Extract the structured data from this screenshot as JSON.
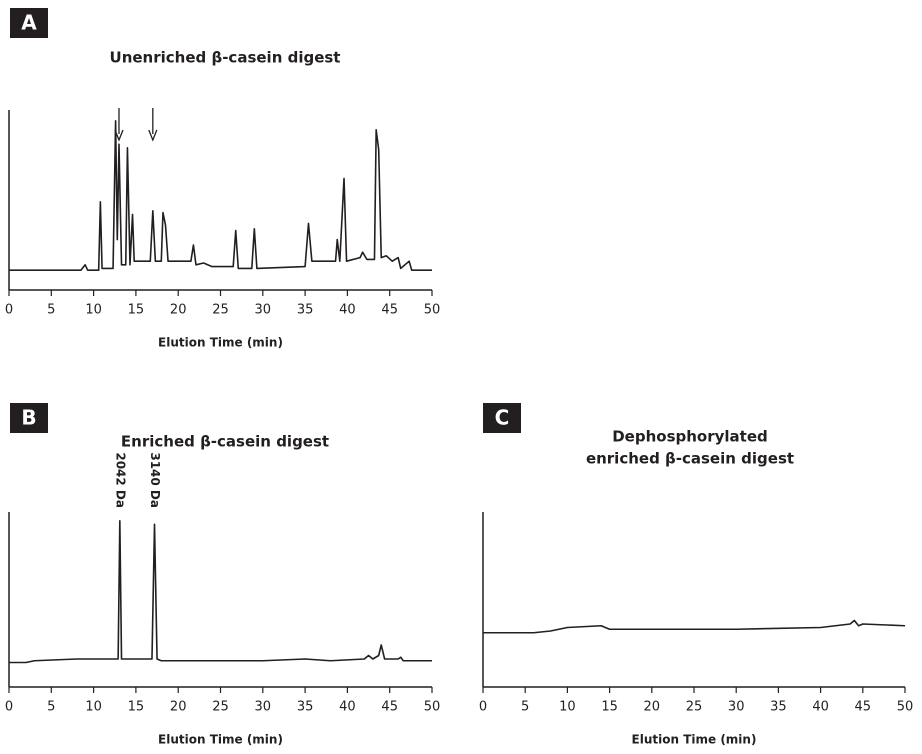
{
  "chart_data": [
    {
      "type": "line",
      "panel": "A",
      "title": [
        "Unenriched β-casein digest"
      ],
      "xlabel": "Elution Time (min)",
      "xlim": [
        0,
        50
      ],
      "xticks": [
        0,
        5,
        10,
        15,
        20,
        25,
        30,
        35,
        40,
        45,
        50
      ],
      "ylim": [
        0,
        100
      ],
      "color": "#231f20",
      "x": [
        0,
        8.5,
        9,
        9.3,
        10.6,
        10.8,
        11,
        12.3,
        12.6,
        12.8,
        13,
        13.3,
        13.8,
        14,
        14.3,
        14.6,
        14.8,
        16.7,
        17,
        17.3,
        18,
        18.2,
        18.5,
        18.8,
        21.5,
        21.8,
        22.1,
        23,
        24,
        26.5,
        26.8,
        27.1,
        28.7,
        29,
        29.3,
        35,
        35.4,
        35.8,
        38.6,
        38.8,
        39.1,
        39.6,
        39.9,
        41.5,
        41.8,
        42.3,
        43.2,
        43.4,
        43.7,
        44,
        44.6,
        45.3,
        46,
        46.3,
        47.3,
        47.6,
        50
      ],
      "values": [
        11,
        11,
        14,
        11,
        11,
        49,
        12,
        12,
        94,
        28,
        81,
        14,
        14,
        79,
        14,
        42,
        16,
        16,
        44,
        16,
        16,
        43,
        36,
        16,
        16,
        25,
        14,
        15,
        13,
        13,
        33,
        12,
        12,
        34,
        12,
        13,
        37,
        16,
        16,
        28,
        16,
        62,
        16,
        18,
        21,
        17,
        17,
        89,
        78,
        18,
        19,
        16,
        18,
        12,
        16,
        11,
        11
      ],
      "arrows": [
        13,
        17
      ]
    },
    {
      "type": "line",
      "panel": "B",
      "title": [
        "Enriched β-casein digest"
      ],
      "xlabel": "Elution Time (min)",
      "xlim": [
        0,
        50
      ],
      "xticks": [
        0,
        5,
        10,
        15,
        20,
        25,
        30,
        35,
        40,
        45,
        50
      ],
      "ylim": [
        0,
        100
      ],
      "color": "#231f20",
      "x": [
        0,
        2,
        3,
        8,
        12.9,
        13.1,
        13.3,
        14,
        16.9,
        17.2,
        17.5,
        18,
        30,
        35,
        38,
        42,
        42.5,
        43,
        43.7,
        44,
        44.4,
        46,
        46.3,
        46.6,
        50
      ],
      "values": [
        14,
        14,
        15,
        16,
        16,
        95,
        16,
        16,
        16,
        93,
        16,
        15,
        15,
        16,
        15,
        16,
        18,
        16,
        18,
        24,
        16,
        16,
        17,
        15,
        15
      ],
      "annotations": [
        {
          "text": "2042 Da",
          "x": 13.1
        },
        {
          "text": "3140 Da",
          "x": 17.2
        }
      ]
    },
    {
      "type": "line",
      "panel": "C",
      "title": [
        "Dephosphorylated",
        "enriched β-casein digest"
      ],
      "xlabel": "Elution Time (min)",
      "xlim": [
        0,
        50
      ],
      "xticks": [
        0,
        5,
        10,
        15,
        20,
        25,
        30,
        35,
        40,
        45,
        50
      ],
      "ylim": [
        0,
        100
      ],
      "color": "#231f20",
      "x": [
        0,
        6,
        8,
        10,
        14,
        15,
        20,
        30,
        40,
        43.5,
        44,
        44.5,
        45,
        50
      ],
      "values": [
        31,
        31,
        32,
        34,
        35,
        33,
        33,
        33,
        34,
        36,
        38,
        35,
        36,
        35
      ]
    }
  ]
}
